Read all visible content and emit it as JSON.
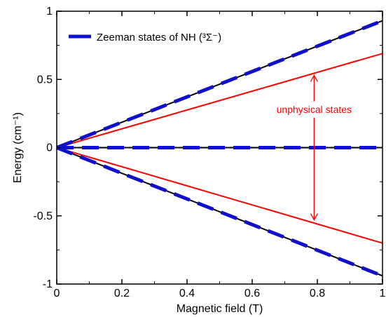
{
  "chart_data": {
    "type": "line",
    "xlabel": "Magnetic field (T)",
    "ylabel": "Energy (cm⁻¹)",
    "xlim": [
      0,
      1
    ],
    "ylim": [
      -1,
      1
    ],
    "x_ticks": [
      0,
      0.2,
      0.4,
      0.6,
      0.8,
      1
    ],
    "x_tick_labels": [
      "0",
      "0.2",
      "0.4",
      "0.6",
      "0.8",
      "1"
    ],
    "y_ticks": [
      -1,
      -0.5,
      0,
      0.5,
      1
    ],
    "y_tick_labels": [
      "-1",
      "-0.5",
      "0",
      "0.5",
      "1"
    ],
    "grid": false,
    "legend": {
      "position": "top-left",
      "entries": [
        {
          "label": "Zeeman states of NH (³Σ⁻)",
          "color": "#1010cc",
          "style": "dashed"
        }
      ]
    },
    "series": [
      {
        "name": "Zeeman states of NH (³Σ⁻)",
        "role": "black-reference",
        "color": "#000000",
        "x": [
          0,
          1
        ],
        "y": [
          0,
          0.93
        ]
      },
      {
        "name": "Zeeman states of NH (³Σ⁻)",
        "role": "black-reference",
        "color": "#000000",
        "x": [
          0,
          1
        ],
        "y": [
          0,
          0
        ]
      },
      {
        "name": "Zeeman states of NH (³Σ⁻)",
        "role": "black-reference",
        "color": "#000000",
        "x": [
          0,
          1
        ],
        "y": [
          0,
          -0.94
        ]
      },
      {
        "name": "Zeeman states of NH (³Σ⁻)",
        "role": "dashed",
        "color": "#1010cc",
        "x": [
          0,
          1
        ],
        "y": [
          0,
          0.93
        ]
      },
      {
        "name": "Zeeman states of NH (³Σ⁻)",
        "role": "dashed",
        "color": "#1010cc",
        "x": [
          0,
          1
        ],
        "y": [
          0,
          0
        ]
      },
      {
        "name": "Zeeman states of NH (³Σ⁻)",
        "role": "dashed",
        "color": "#1010cc",
        "x": [
          0,
          1
        ],
        "y": [
          0,
          -0.94
        ]
      },
      {
        "name": "unphysical states",
        "role": "red",
        "color": "#ff0000",
        "x": [
          0,
          1
        ],
        "y": [
          0,
          0.69
        ]
      },
      {
        "name": "unphysical states",
        "role": "red",
        "color": "#ff0000",
        "x": [
          0,
          1
        ],
        "y": [
          0,
          -0.7
        ]
      }
    ],
    "annotations": [
      {
        "text": "unphysical states",
        "color": "#ff0000",
        "x": 0.79,
        "y": 0.28,
        "arrow_from_y": 0.34,
        "arrow_to_y": 0.53,
        "arrow2_from_y": 0.22,
        "arrow2_to_y": -0.53
      }
    ]
  }
}
